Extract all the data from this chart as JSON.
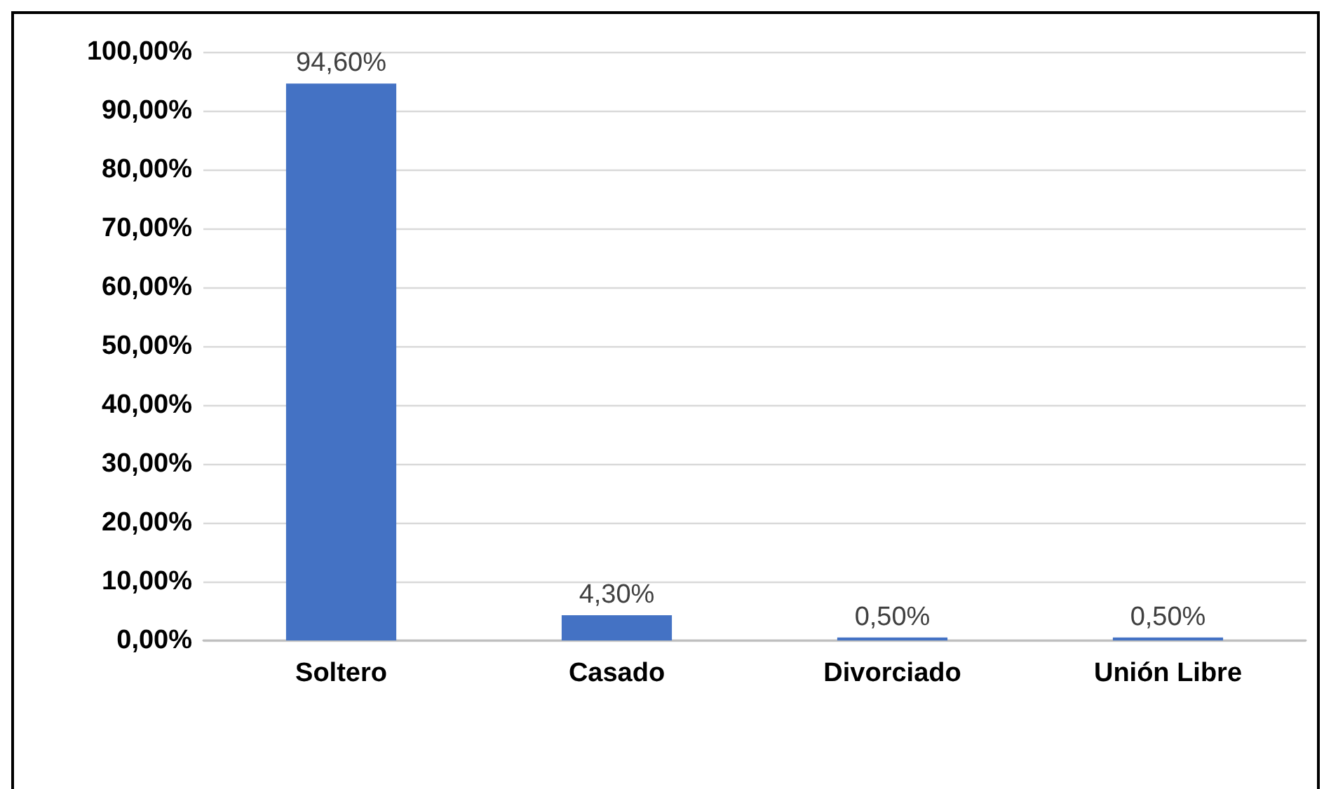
{
  "chart_data": {
    "type": "bar",
    "categories": [
      "Soltero",
      "Casado",
      "Divorciado",
      "Unión Libre"
    ],
    "series": [
      {
        "color": "#4472c4",
        "values": [
          94.6,
          4.3,
          0.5,
          0.5
        ],
        "value_labels": [
          "94,60%",
          "4,30%",
          "0,50%",
          "0,50%"
        ]
      }
    ],
    "ylim": [
      0,
      100
    ],
    "yticks": [
      {
        "value": 0,
        "label": "0,00%"
      },
      {
        "value": 10,
        "label": "10,00%"
      },
      {
        "value": 20,
        "label": "20,00%"
      },
      {
        "value": 30,
        "label": "30,00%"
      },
      {
        "value": 40,
        "label": "40,00%"
      },
      {
        "value": 50,
        "label": "50,00%"
      },
      {
        "value": 60,
        "label": "60,00%"
      },
      {
        "value": 70,
        "label": "70,00%"
      },
      {
        "value": 80,
        "label": "80,00%"
      },
      {
        "value": 90,
        "label": "90,00%"
      },
      {
        "value": 100,
        "label": "100,00%"
      }
    ],
    "grid": "y"
  }
}
